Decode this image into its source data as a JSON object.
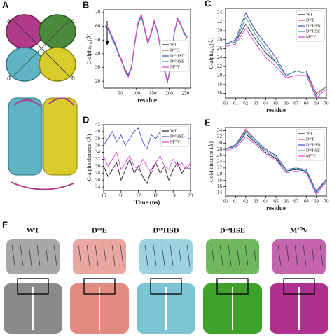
{
  "panel_a": {
    "panel_label": "A",
    "subunit_labels": [
      "a",
      "c",
      "d",
      "b"
    ]
  },
  "panel_f": {
    "panel_label": "F",
    "variants": [
      "WT",
      "D⁶⁹E",
      "D⁶⁹HSD",
      "D⁶⁹HSE",
      "M⁷⁰V"
    ]
  },
  "chart_data": [
    {
      "type": "line",
      "panel_label": "B",
      "xlabel": "residue",
      "ylabel": "C-alpha",
      "ylabel_sub": "AA",
      "ylabel_unit": "(Å)",
      "x": [
        5,
        15,
        25,
        35,
        45,
        55,
        65,
        75,
        85,
        95,
        105,
        115,
        125,
        135,
        145,
        155,
        165,
        175,
        185,
        195,
        205,
        215,
        225,
        235,
        245,
        255
      ],
      "xlim": [
        0,
        265
      ],
      "ylim": [
        15,
        72
      ],
      "xticks": [
        50,
        100,
        150,
        200,
        250
      ],
      "yticks": [
        20,
        30,
        40,
        50,
        60,
        70
      ],
      "legend": "center right",
      "series": [
        {
          "name": "WT",
          "color": "#222222",
          "values": [
            60,
            58,
            52,
            47,
            40,
            35,
            28,
            24,
            30,
            48,
            62,
            68,
            58,
            48,
            55,
            64,
            55,
            42,
            28,
            20,
            30,
            55,
            65,
            62,
            55,
            52
          ]
        },
        {
          "name": "D⁶⁹E",
          "color": "#e8434f",
          "values": [
            61,
            58,
            53,
            46,
            41,
            34,
            29,
            25,
            31,
            49,
            63,
            67,
            57,
            47,
            56,
            65,
            54,
            41,
            27,
            21,
            31,
            56,
            64,
            61,
            56,
            51
          ]
        },
        {
          "name": "D⁶⁹HSD",
          "color": "#3a4fd0",
          "values": [
            60,
            57,
            52,
            47,
            39,
            35,
            28,
            25,
            30,
            47,
            62,
            68,
            58,
            48,
            55,
            63,
            55,
            43,
            28,
            20,
            30,
            55,
            66,
            62,
            55,
            52
          ]
        },
        {
          "name": "D⁶⁹HSE",
          "color": "#2a9d9d",
          "values": [
            59,
            58,
            51,
            46,
            40,
            36,
            28,
            24,
            29,
            48,
            61,
            67,
            58,
            49,
            54,
            64,
            56,
            42,
            29,
            21,
            29,
            54,
            65,
            63,
            54,
            53
          ]
        },
        {
          "name": "M⁷⁰V",
          "color": "#e040e0",
          "values": [
            61,
            59,
            53,
            48,
            41,
            35,
            27,
            23,
            30,
            48,
            62,
            69,
            59,
            48,
            55,
            64,
            55,
            42,
            28,
            19,
            30,
            55,
            65,
            62,
            56,
            52
          ]
        }
      ]
    },
    {
      "type": "line",
      "panel_label": "C",
      "xlabel": "residue",
      "ylabel": "C-alpha",
      "ylabel_sub": "AA",
      "ylabel_unit": "(Å)",
      "x": [
        60,
        61,
        62,
        63,
        64,
        65,
        66,
        67,
        68,
        69,
        70
      ],
      "xlim": [
        60,
        70
      ],
      "ylim": [
        15,
        35
      ],
      "xticks": [
        60,
        61,
        62,
        63,
        64,
        65,
        66,
        67,
        68,
        69,
        70
      ],
      "yticks": [
        16,
        18,
        20,
        22,
        24,
        26,
        28,
        30,
        32,
        34
      ],
      "legend": "upper right",
      "series": [
        {
          "name": "WT",
          "color": "#222222",
          "values": [
            27,
            27.5,
            31.5,
            28,
            25,
            23,
            20,
            21,
            21,
            16,
            17.5
          ]
        },
        {
          "name": "D⁶⁹E",
          "color": "#e8434f",
          "values": [
            27,
            28,
            34,
            30,
            27,
            24,
            20,
            21,
            21,
            16,
            17.5
          ]
        },
        {
          "name": "D⁶⁹HSD",
          "color": "#3a4fd0",
          "values": [
            27,
            28,
            34,
            30,
            27,
            24,
            20,
            21,
            21,
            15,
            17
          ]
        },
        {
          "name": "D⁶⁹HSE",
          "color": "#2a9d9d",
          "values": [
            27,
            27.5,
            33,
            29,
            26,
            23,
            20,
            21,
            20.5,
            15.5,
            17.5
          ]
        },
        {
          "name": "M⁷⁰V",
          "color": "#e040e0",
          "values": [
            26.5,
            27,
            30.5,
            27,
            24,
            22,
            19.5,
            20,
            20,
            15,
            17
          ]
        }
      ]
    },
    {
      "type": "line",
      "panel_label": "D",
      "xlabel": "Time (ns)",
      "ylabel": "C-alpha distance (Å)",
      "x": [
        15,
        15.25,
        15.5,
        15.75,
        16,
        16.25,
        16.5,
        16.75,
        17,
        17.25,
        17.5,
        17.75,
        18,
        18.25,
        18.5,
        18.75,
        19,
        19.25,
        19.5,
        19.75,
        20
      ],
      "xlim": [
        15,
        20
      ],
      "ylim": [
        23,
        42
      ],
      "xticks": [
        15,
        16,
        17,
        18,
        19,
        20
      ],
      "yticks": [
        24,
        26,
        28,
        30,
        32,
        34,
        36,
        38,
        40,
        42
      ],
      "legend": "upper right",
      "series": [
        {
          "name": "WT",
          "color": "#222222",
          "values": [
            30,
            27,
            29,
            31,
            26,
            29,
            32,
            28,
            30,
            27,
            25,
            29,
            31,
            28,
            30,
            26,
            29,
            31,
            28,
            30,
            29
          ]
        },
        {
          "name": "D⁶⁹HSD",
          "color": "#3a4fd0",
          "values": [
            36,
            38,
            40,
            37,
            39,
            36,
            38,
            40,
            41,
            37,
            35,
            39,
            38,
            40,
            36,
            38,
            37,
            39,
            41,
            38,
            38
          ]
        },
        {
          "name": "M⁷⁰V",
          "color": "#e040e0",
          "values": [
            33,
            30,
            32,
            34,
            29,
            31,
            33,
            30,
            29,
            32,
            30,
            28,
            31,
            33,
            30,
            29,
            32,
            30,
            31,
            29,
            31
          ]
        }
      ]
    },
    {
      "type": "line",
      "panel_label": "E",
      "xlabel": "residue",
      "ylabel": "CoM distance (Å)",
      "x": [
        60,
        61,
        62,
        63,
        64,
        65,
        66,
        67,
        68,
        69,
        70
      ],
      "xlim": [
        60,
        70
      ],
      "ylim": [
        13,
        35
      ],
      "xticks": [
        60,
        61,
        62,
        63,
        64,
        65,
        66,
        67,
        68,
        69,
        70
      ],
      "yticks": [
        14,
        16,
        18,
        20,
        22,
        24,
        26,
        28,
        30,
        32,
        34
      ],
      "legend": "upper right",
      "series": [
        {
          "name": "WT",
          "color": "#222222",
          "values": [
            28,
            29,
            33,
            30,
            27,
            25,
            21,
            21.5,
            21,
            14,
            18
          ]
        },
        {
          "name": "D⁶⁹E",
          "color": "#e8434f",
          "values": [
            28,
            29.5,
            34.5,
            31,
            28,
            26,
            21.5,
            22,
            21.5,
            14,
            18.5
          ]
        },
        {
          "name": "D⁶⁹HSD",
          "color": "#3a4fd0",
          "values": [
            28,
            29.5,
            34,
            31,
            28,
            26,
            21.5,
            22,
            21.5,
            14.5,
            18.5
          ]
        },
        {
          "name": "D⁶⁹HSE",
          "color": "#2a9d9d",
          "values": [
            28,
            29,
            33.5,
            30.5,
            27.5,
            25.5,
            21,
            22,
            21,
            14,
            18
          ]
        },
        {
          "name": "M⁷⁰V",
          "color": "#e040e0",
          "values": [
            27.5,
            28.5,
            32,
            29.5,
            26.5,
            24.5,
            20.5,
            21,
            20.5,
            13.5,
            17.5
          ]
        }
      ]
    }
  ]
}
